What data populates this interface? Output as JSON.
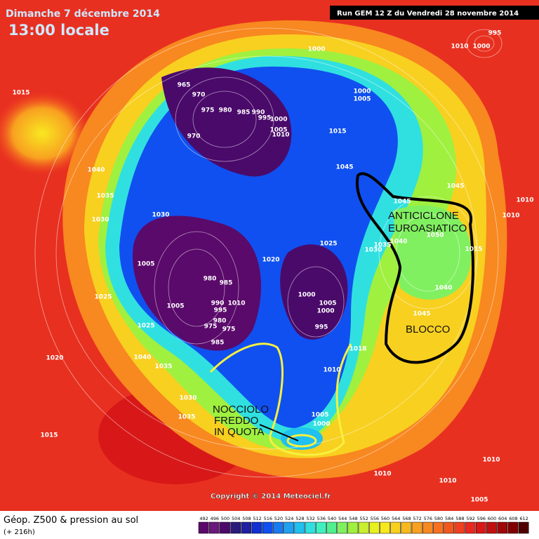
{
  "header": {
    "date": "Dimanche 7 décembre 2014",
    "time": "13:00 locale",
    "run": "Run GEM 12 Z du Vendredi 28 novembre 2014"
  },
  "annotations": {
    "anticyclone": [
      "ANTICICLONE",
      "EUROASIATICO"
    ],
    "block": "BLOCCO",
    "cold_core": [
      "NOCCIOLO",
      "FREDDO",
      "IN QUOTA"
    ]
  },
  "copyright": "Copyright © 2014 Meteociel.fr",
  "pressure_labels": [
    1000,
    1000,
    1005,
    965,
    970,
    975,
    980,
    985,
    990,
    995,
    1000,
    1005,
    1010,
    1015,
    970,
    1015,
    1040,
    1035,
    1030,
    1030,
    1045,
    1045,
    1045,
    1010,
    1040,
    1050,
    1030,
    1035,
    1025,
    1020,
    1005,
    980,
    985,
    990,
    995,
    1010,
    1005,
    1025,
    975,
    980,
    975,
    985,
    1000,
    1005,
    1000,
    995,
    1040,
    1045,
    1025,
    1020,
    1040,
    1035,
    1018,
    1010,
    1030,
    1035,
    1015,
    1005,
    1000,
    1010,
    995,
    1000,
    1010,
    1015,
    1010,
    1005,
    1010,
    1010
  ],
  "legend": {
    "title": "Géop. Z500 & pression au sol",
    "subtitle": "(+ 216h)",
    "values": [
      492,
      496,
      500,
      504,
      508,
      512,
      516,
      520,
      524,
      528,
      532,
      536,
      540,
      544,
      548,
      552,
      556,
      560,
      564,
      568,
      572,
      576,
      580,
      584,
      588,
      592,
      596,
      600,
      604,
      608,
      612
    ],
    "colors": [
      "#5a0a6a",
      "#6a1a7a",
      "#4a0a6a",
      "#2a1a7a",
      "#2020a0",
      "#1030d0",
      "#1050f0",
      "#1a7af0",
      "#20a0f0",
      "#20c0f0",
      "#30e0e0",
      "#40f0c0",
      "#50f090",
      "#80f060",
      "#a0f040",
      "#c8f030",
      "#e8f020",
      "#f8e820",
      "#f8d020",
      "#f8b820",
      "#f8a020",
      "#f88820",
      "#f87020",
      "#f05820",
      "#f04020",
      "#e82820",
      "#d81818",
      "#c01010",
      "#a00808",
      "#800000",
      "#500000"
    ]
  }
}
